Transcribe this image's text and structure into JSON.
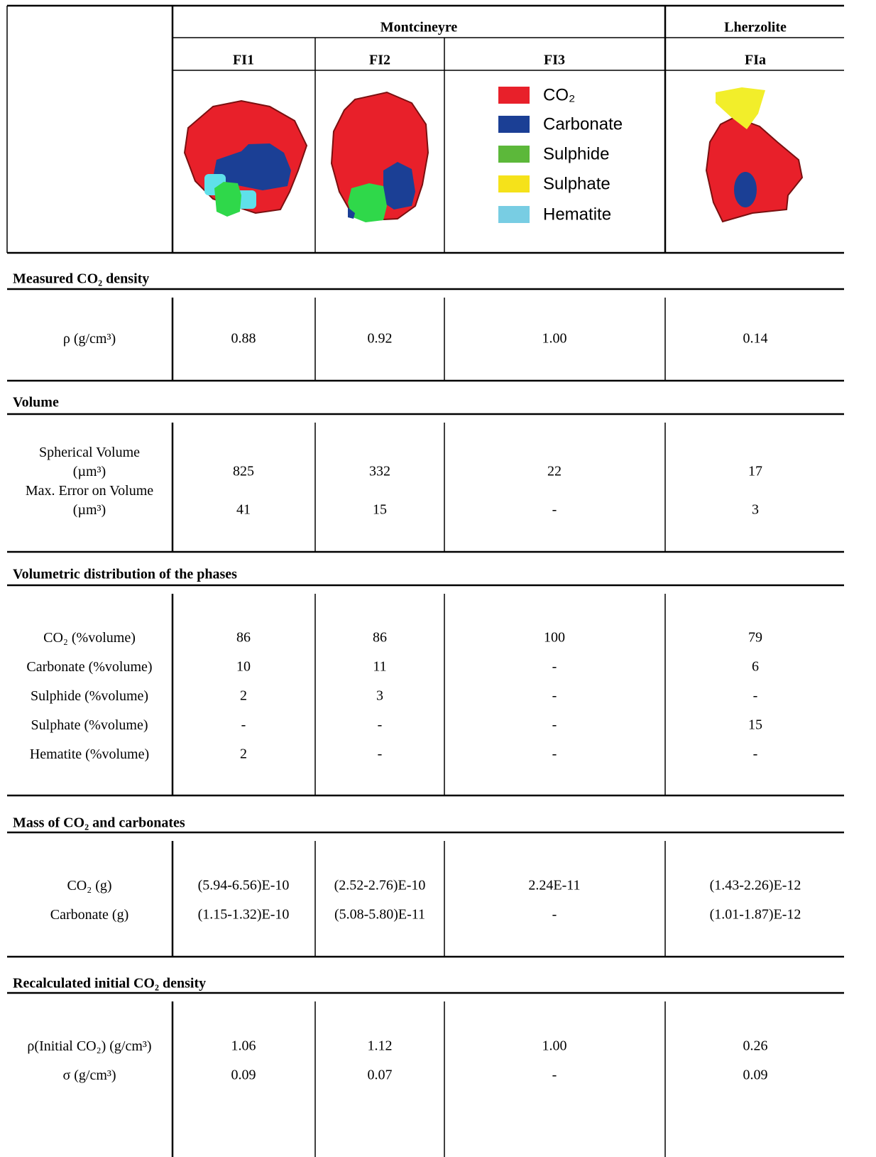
{
  "header": {
    "groups": [
      "Montcineyre",
      "Lherzolite"
    ],
    "columns": [
      "FI1",
      "FI2",
      "FI3",
      "FIa"
    ]
  },
  "legend": [
    {
      "label": "CO₂",
      "color": "#e8202a"
    },
    {
      "label": "Carbonate",
      "color": "#1b3f95"
    },
    {
      "label": "Sulphide",
      "color": "#5cb83a"
    },
    {
      "label": "Sulphate",
      "color": "#f5e21a"
    },
    {
      "label": "Hematite",
      "color": "#78cde3"
    }
  ],
  "sections": [
    {
      "title": "Measured CO₂ density",
      "rows": [
        {
          "label": "ρ  (g/cm³)",
          "values": [
            "0.88",
            "0.92",
            "1.00",
            "0.14"
          ]
        }
      ]
    },
    {
      "title": "Volume",
      "rows": [
        {
          "label": "Spherical Volume\n(µm³)",
          "values": [
            "825",
            "332",
            "22",
            "17"
          ]
        },
        {
          "label": "Max. Error on Volume\n(µm³)",
          "values": [
            "41",
            "15",
            "-",
            "3"
          ]
        }
      ]
    },
    {
      "title": "Volumetric distribution of the phases",
      "rows": [
        {
          "label": "CO₂ (%volume)",
          "values": [
            "86",
            "86",
            "100",
            "79"
          ]
        },
        {
          "label": "Carbonate (%volume)",
          "values": [
            "10",
            "11",
            "-",
            "6"
          ]
        },
        {
          "label": "Sulphide (%volume)",
          "values": [
            "2",
            "3",
            "-",
            "-"
          ]
        },
        {
          "label": "Sulphate (%volume)",
          "values": [
            "-",
            "-",
            "-",
            "15"
          ]
        },
        {
          "label": "Hematite (%volume)",
          "values": [
            "2",
            "-",
            "-",
            "-"
          ]
        }
      ]
    },
    {
      "title": "Mass of CO₂ and carbonates",
      "rows": [
        {
          "label": "CO₂ (g)",
          "values": [
            "(5.94-6.56)E-10",
            "(2.52-2.76)E-10",
            "2.24E-11",
            "(1.43-2.26)E-12"
          ]
        },
        {
          "label": "Carbonate (g)",
          "values": [
            "(1.15-1.32)E-10",
            "(5.08-5.80)E-11",
            "-",
            "(1.01-1.87)E-12"
          ]
        }
      ]
    },
    {
      "title": "Recalculated initial CO₂ density",
      "rows": [
        {
          "label": "ρ(Initial CO₂)  (g/cm³)",
          "values": [
            "1.06",
            "1.12",
            "1.00",
            "0.26"
          ]
        },
        {
          "label": "σ (g/cm³)",
          "values": [
            "0.09",
            "0.07",
            "-",
            "0.09"
          ]
        }
      ]
    }
  ]
}
